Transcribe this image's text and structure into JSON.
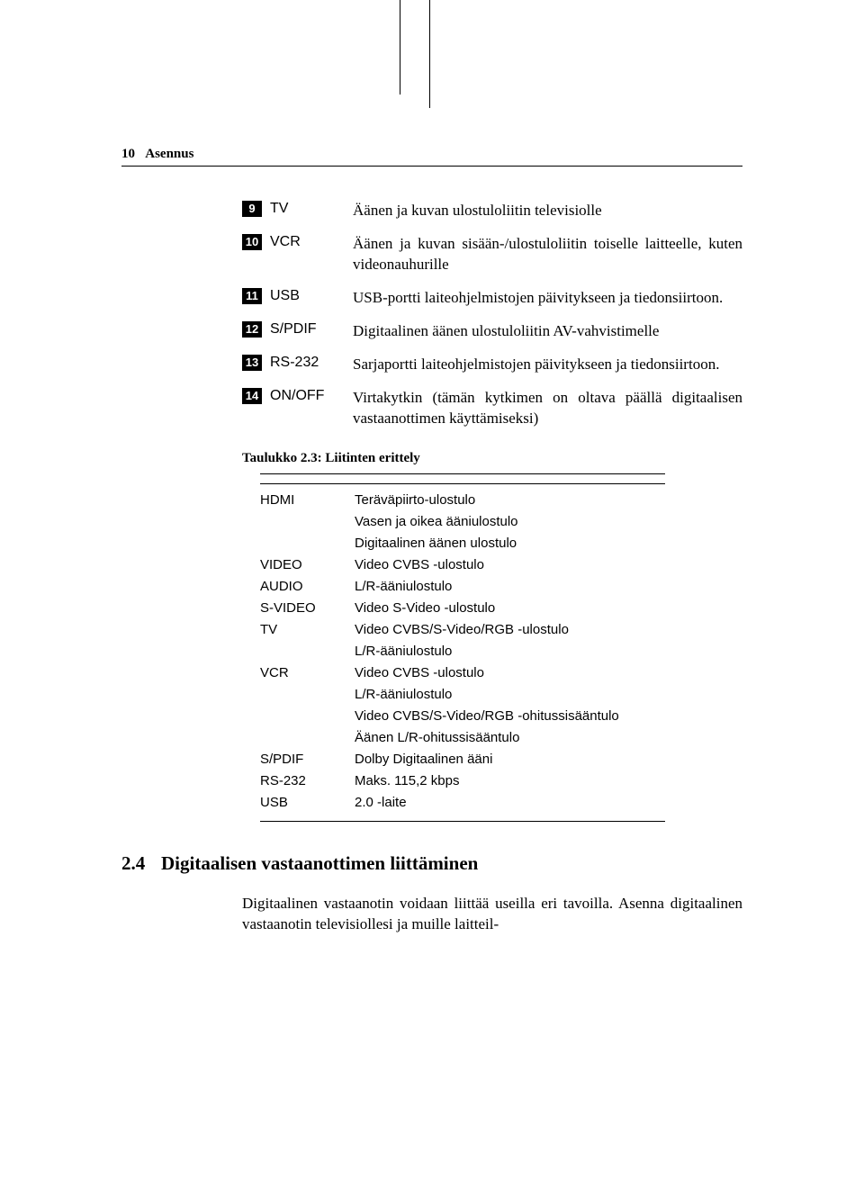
{
  "header": {
    "pageNumber": "10",
    "chapter": "Asennus"
  },
  "legend": [
    {
      "num": "9",
      "label": "TV",
      "desc": "Äänen ja kuvan ulostuloliitin televisiolle"
    },
    {
      "num": "10",
      "label": "VCR",
      "desc": "Äänen ja kuvan sisään-/ulostuloliitin toiselle laitteelle, kuten videonauhurille"
    },
    {
      "num": "11",
      "label": "USB",
      "desc": "USB-portti laiteohjelmistojen päivitykseen ja tiedonsiirtoon."
    },
    {
      "num": "12",
      "label": "S/PDIF",
      "desc": "Digitaalinen äänen ulostuloliitin AV-vahvistimelle"
    },
    {
      "num": "13",
      "label": "RS-232",
      "desc": "Sarjaportti laiteohjelmistojen päivitykseen ja tiedonsiirtoon."
    },
    {
      "num": "14",
      "label": "ON/OFF",
      "desc": "Virtakytkin (tämän kytkimen on oltava päällä digitaalisen vastaanottimen käyttämiseksi)"
    }
  ],
  "table": {
    "caption": "Taulukko 2.3: Liitinten erittely",
    "rows": [
      {
        "label": "HDMI",
        "value": "Teräväpiirto-ulostulo"
      },
      {
        "label": "",
        "value": "Vasen ja oikea ääniulostulo"
      },
      {
        "label": "",
        "value": "Digitaalinen äänen ulostulo"
      },
      {
        "label": "VIDEO",
        "value": "Video CVBS -ulostulo"
      },
      {
        "label": "AUDIO",
        "value": "L/R-ääniulostulo"
      },
      {
        "label": "S-VIDEO",
        "value": "Video S-Video -ulostulo"
      },
      {
        "label": "TV",
        "value": "Video CVBS/S-Video/RGB -ulostulo"
      },
      {
        "label": "",
        "value": "L/R-ääniulostulo"
      },
      {
        "label": "VCR",
        "value": "Video CVBS -ulostulo"
      },
      {
        "label": "",
        "value": "L/R-ääniulostulo"
      },
      {
        "label": "",
        "value": "Video CVBS/S-Video/RGB -ohitussisääntulo"
      },
      {
        "label": "",
        "value": "Äänen L/R-ohitussisääntulo"
      },
      {
        "label": "S/PDIF",
        "value": "Dolby Digitaalinen ääni"
      },
      {
        "label": "RS-232",
        "value": "Maks. 115,2 kbps"
      },
      {
        "label": "USB",
        "value": "2.0 -laite"
      }
    ]
  },
  "section": {
    "num": "2.4",
    "title": "Digitaalisen vastaanottimen liittäminen",
    "para": "Digitaalinen vastaanotin voidaan liittää useilla eri tavoilla. Asenna digitaalinen vastaanotin televisiollesi ja muille laitteil-"
  }
}
